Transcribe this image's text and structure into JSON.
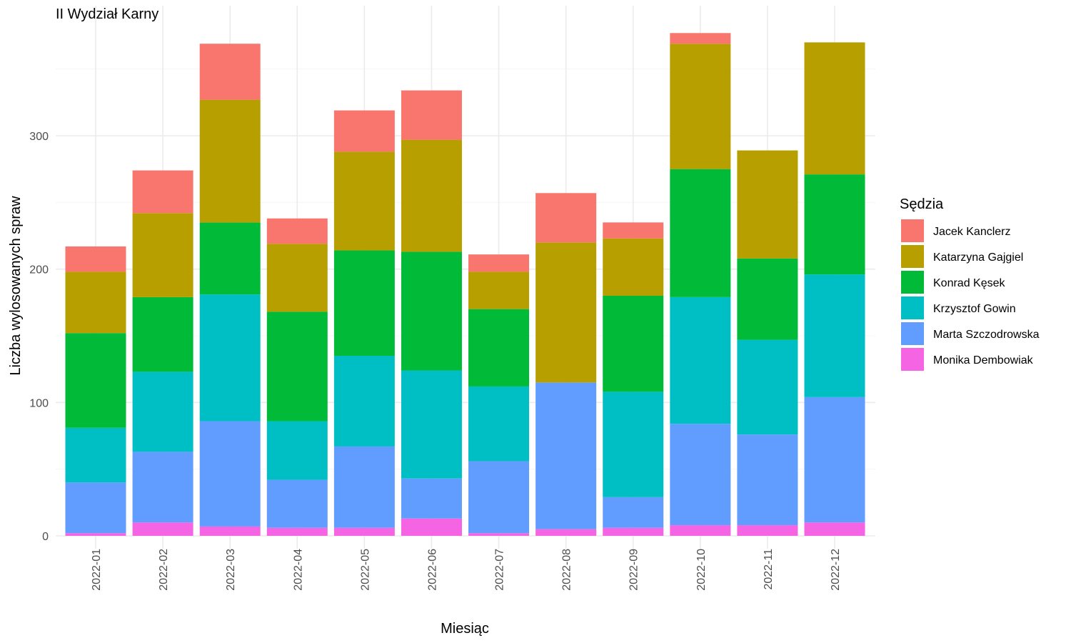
{
  "chart_data": {
    "type": "bar",
    "stacked": true,
    "title": "II Wydział Karny",
    "xlabel": "Miesiąc",
    "ylabel": "Liczba wylosowanych spraw",
    "ylim": [
      0,
      385
    ],
    "yticks": [
      0,
      100,
      200,
      300
    ],
    "grid": true,
    "legend_title": "Sędzia",
    "legend_position": "right",
    "categories": [
      "2022-01",
      "2022-02",
      "2022-03",
      "2022-04",
      "2022-05",
      "2022-06",
      "2022-07",
      "2022-08",
      "2022-09",
      "2022-10",
      "2022-11",
      "2022-12"
    ],
    "series": [
      {
        "name": "Jacek Kanclerz",
        "color": "#F8766D",
        "values": [
          19,
          32,
          42,
          19,
          31,
          37,
          13,
          37,
          12,
          8,
          0,
          0
        ]
      },
      {
        "name": "Katarzyna Gajgiel",
        "color": "#B79F00",
        "values": [
          46,
          63,
          92,
          51,
          74,
          84,
          28,
          105,
          43,
          94,
          81,
          99
        ]
      },
      {
        "name": "Konrad Kęsek",
        "color": "#00BA38",
        "values": [
          71,
          56,
          54,
          82,
          79,
          89,
          58,
          0,
          72,
          96,
          61,
          75
        ]
      },
      {
        "name": "Krzysztof Gowin",
        "color": "#00BFC4",
        "values": [
          41,
          60,
          95,
          44,
          68,
          81,
          56,
          0,
          79,
          95,
          71,
          92
        ]
      },
      {
        "name": "Marta Szczodrowska",
        "color": "#619CFF",
        "values": [
          38,
          53,
          79,
          36,
          61,
          30,
          54,
          110,
          23,
          76,
          68,
          94
        ]
      },
      {
        "name": "Monika Dembowiak",
        "color": "#F564E3",
        "values": [
          2,
          10,
          7,
          6,
          6,
          13,
          2,
          5,
          6,
          8,
          8,
          10
        ]
      }
    ],
    "stack_order_bottom_to_top": [
      "Monika Dembowiak",
      "Marta Szczodrowska",
      "Krzysztof Gowin",
      "Konrad Kęsek",
      "Katarzyna Gajgiel",
      "Jacek Kanclerz"
    ]
  }
}
